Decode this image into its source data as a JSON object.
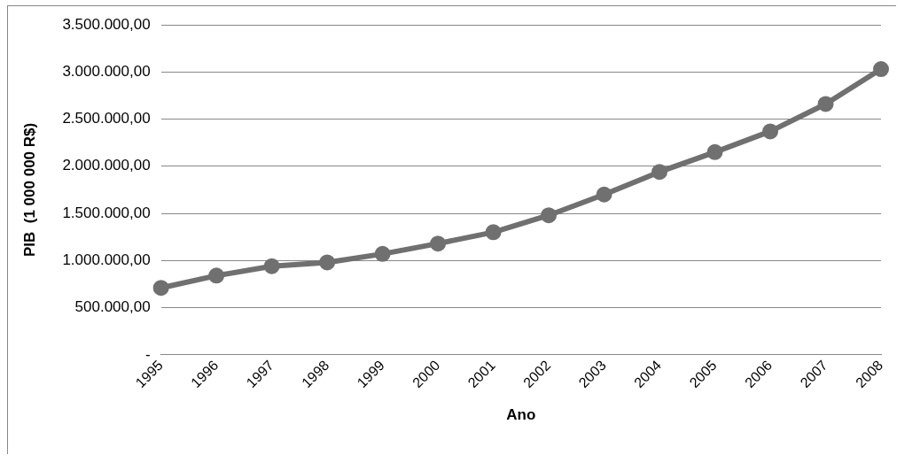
{
  "chart_data": {
    "type": "line",
    "xlabel": "Ano",
    "ylabel": "PIB  (1 000 000 R$)",
    "categories": [
      "1995",
      "1996",
      "1997",
      "1998",
      "1999",
      "2000",
      "2001",
      "2002",
      "2003",
      "2004",
      "2005",
      "2006",
      "2007",
      "2008"
    ],
    "series": [
      {
        "color": "#707070",
        "values": [
          710000,
          840000,
          940000,
          980000,
          1070000,
          1180000,
          1300000,
          1480000,
          1700000,
          1940000,
          2150000,
          2370000,
          2660000,
          3030000
        ]
      }
    ],
    "ylim": [
      0,
      3500000
    ],
    "yticks": [
      {
        "value": 0,
        "label": "-"
      },
      {
        "value": 500000,
        "label": "500.000,00"
      },
      {
        "value": 1000000,
        "label": "1.000.000,00"
      },
      {
        "value": 1500000,
        "label": "1.500.000,00"
      },
      {
        "value": 2000000,
        "label": "2.000.000,00"
      },
      {
        "value": 2500000,
        "label": "2.500.000,00"
      },
      {
        "value": 3000000,
        "label": "3.000.000,00"
      },
      {
        "value": 3500000,
        "label": "3.500.000,00"
      }
    ],
    "grid": "y",
    "legend": false,
    "marker": "circle",
    "line_style": "solid"
  }
}
